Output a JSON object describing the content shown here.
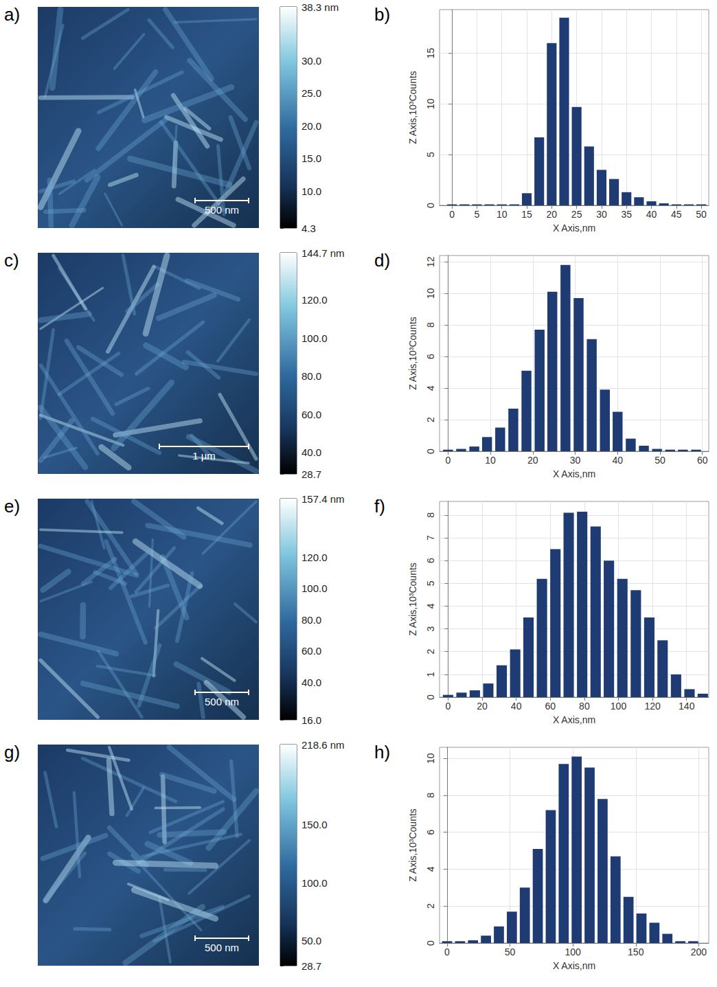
{
  "chart_data": [
    {
      "type": "image",
      "panel": "a)",
      "scale_bar": "500 nm",
      "colorbar": {
        "range": [
          4.3,
          38.3
        ],
        "ticks": [
          {
            "value": 38.3,
            "label": "38.3 nm"
          },
          {
            "value": 30,
            "label": "30.0"
          },
          {
            "value": 25,
            "label": "25.0"
          },
          {
            "value": 20,
            "label": "20.0"
          },
          {
            "value": 15,
            "label": "15.0"
          },
          {
            "value": 10,
            "label": "10.0"
          },
          4.3
        ]
      }
    },
    {
      "type": "bar",
      "panel": "b)",
      "x_label": "X Axis,nm",
      "y_label": "Z Axis,10³Counts",
      "color": "#1f3b73",
      "grid": true,
      "x": [
        0,
        2.5,
        5,
        7.5,
        10,
        12.5,
        15,
        17.5,
        20,
        22.5,
        25,
        27.5,
        30,
        32.5,
        35,
        37.5,
        40,
        42.5,
        45,
        47.5,
        50
      ],
      "values": [
        0.1,
        0.1,
        0.1,
        0.1,
        0.1,
        0.1,
        1.2,
        6.7,
        16,
        18.5,
        9.7,
        5.8,
        3.5,
        2.6,
        1.3,
        0.8,
        0.4,
        0.2,
        0.1,
        0.1,
        0.1
      ],
      "xlim": [
        -2.5,
        51.5
      ],
      "xticks": [
        0,
        5,
        10,
        15,
        20,
        25,
        30,
        35,
        40,
        45,
        50
      ],
      "ylim": [
        0,
        19.3
      ],
      "yticks": [
        0,
        5,
        10,
        15
      ]
    },
    {
      "type": "image",
      "panel": "c)",
      "scale_bar": "1 µm",
      "colorbar": {
        "range": [
          28.7,
          144.7
        ],
        "ticks": [
          {
            "value": 144.7,
            "label": "144.7 nm"
          },
          {
            "value": 120,
            "label": "120.0"
          },
          {
            "value": 100,
            "label": "100.0"
          },
          {
            "value": 80,
            "label": "80.0"
          },
          {
            "value": 60,
            "label": "60.0"
          },
          {
            "value": 40,
            "label": "40.0"
          },
          28.7
        ]
      }
    },
    {
      "type": "bar",
      "panel": "d)",
      "x_label": "X Axis,nm",
      "y_label": "Z Axis,10³Counts",
      "color": "#1f3b73",
      "grid": true,
      "x": [
        0,
        3.1,
        6.2,
        9.2,
        12.3,
        15.4,
        18.5,
        21.6,
        24.6,
        27.7,
        30.8,
        33.9,
        37.0,
        40.0,
        43.1,
        46.2,
        49.3,
        52.4,
        55.4,
        58.5
      ],
      "values": [
        0.1,
        0.15,
        0.3,
        0.9,
        1.5,
        2.7,
        5.1,
        7.7,
        10.1,
        11.8,
        9.7,
        7.1,
        3.9,
        2.5,
        0.8,
        0.35,
        0.15,
        0.1,
        0.1,
        0.1
      ],
      "xlim": [
        -2,
        61.5
      ],
      "xticks": [
        0,
        10,
        20,
        30,
        40,
        50,
        60
      ],
      "ylim": [
        0,
        12.4
      ],
      "yticks": [
        0,
        2,
        4,
        6,
        8,
        10,
        12
      ]
    },
    {
      "type": "image",
      "panel": "e)",
      "scale_bar": "500 nm",
      "colorbar": {
        "range": [
          16,
          157.4
        ],
        "ticks": [
          {
            "value": 157.4,
            "label": "157.4 nm"
          },
          {
            "value": 120,
            "label": "120.0"
          },
          {
            "value": 100,
            "label": "100.0"
          },
          {
            "value": 80,
            "label": "80.0"
          },
          {
            "value": 60,
            "label": "60.0"
          },
          {
            "value": 40,
            "label": "40.0"
          },
          {
            "value": 16,
            "label": "16.0"
          }
        ]
      }
    },
    {
      "type": "bar",
      "panel": "f)",
      "x_label": "X Axis,nm",
      "y_label": "Z Axis,10³Counts",
      "color": "#1f3b73",
      "grid": true,
      "x": [
        0,
        7.9,
        15.7,
        23.6,
        31.5,
        39.4,
        47.2,
        55.1,
        63.0,
        70.8,
        78.7,
        86.6,
        94.4,
        102.3,
        110.2,
        118.1,
        125.9,
        133.8,
        141.7,
        149.5
      ],
      "values": [
        0.1,
        0.2,
        0.3,
        0.6,
        1.4,
        2.1,
        3.5,
        5.2,
        6.5,
        8.1,
        8.15,
        7.5,
        6.0,
        5.2,
        4.7,
        3.5,
        2.5,
        1.0,
        0.35,
        0.15
      ],
      "xlim": [
        -5,
        153
      ],
      "xticks": [
        0,
        20,
        40,
        60,
        80,
        100,
        120,
        140
      ],
      "ylim": [
        0,
        8.6
      ],
      "yticks": [
        0,
        1,
        2,
        3,
        4,
        5,
        6,
        7,
        8
      ]
    },
    {
      "type": "image",
      "panel": "g)",
      "scale_bar": "500 nm",
      "colorbar": {
        "range": [
          28.7,
          218.6
        ],
        "ticks": [
          {
            "value": 218.6,
            "label": "218.6 nm"
          },
          {
            "value": 150,
            "label": "150.0"
          },
          {
            "value": 100,
            "label": "100.0"
          },
          {
            "value": 50,
            "label": "50.0"
          },
          28.7
        ]
      }
    },
    {
      "type": "bar",
      "panel": "h)",
      "x_label": "X Axis,nm",
      "y_label": "Z Axis,10³Counts",
      "color": "#1f3b73",
      "grid": true,
      "x": [
        0,
        10.3,
        20.6,
        30.9,
        41.2,
        51.5,
        61.8,
        72.1,
        82.4,
        92.7,
        103,
        113.3,
        123.6,
        133.9,
        144.2,
        154.5,
        164.8,
        175.1,
        185.4,
        195.7
      ],
      "values": [
        0.1,
        0.1,
        0.15,
        0.4,
        0.9,
        1.7,
        3.0,
        5.1,
        7.2,
        9.7,
        10.1,
        9.5,
        7.8,
        4.7,
        2.5,
        1.6,
        1.1,
        0.5,
        0.1,
        0.1
      ],
      "xlim": [
        -6,
        208
      ],
      "xticks": [
        0,
        50,
        100,
        150,
        200
      ],
      "ylim": [
        0,
        10.6
      ],
      "yticks": [
        0,
        2,
        4,
        6,
        8,
        10
      ]
    }
  ]
}
